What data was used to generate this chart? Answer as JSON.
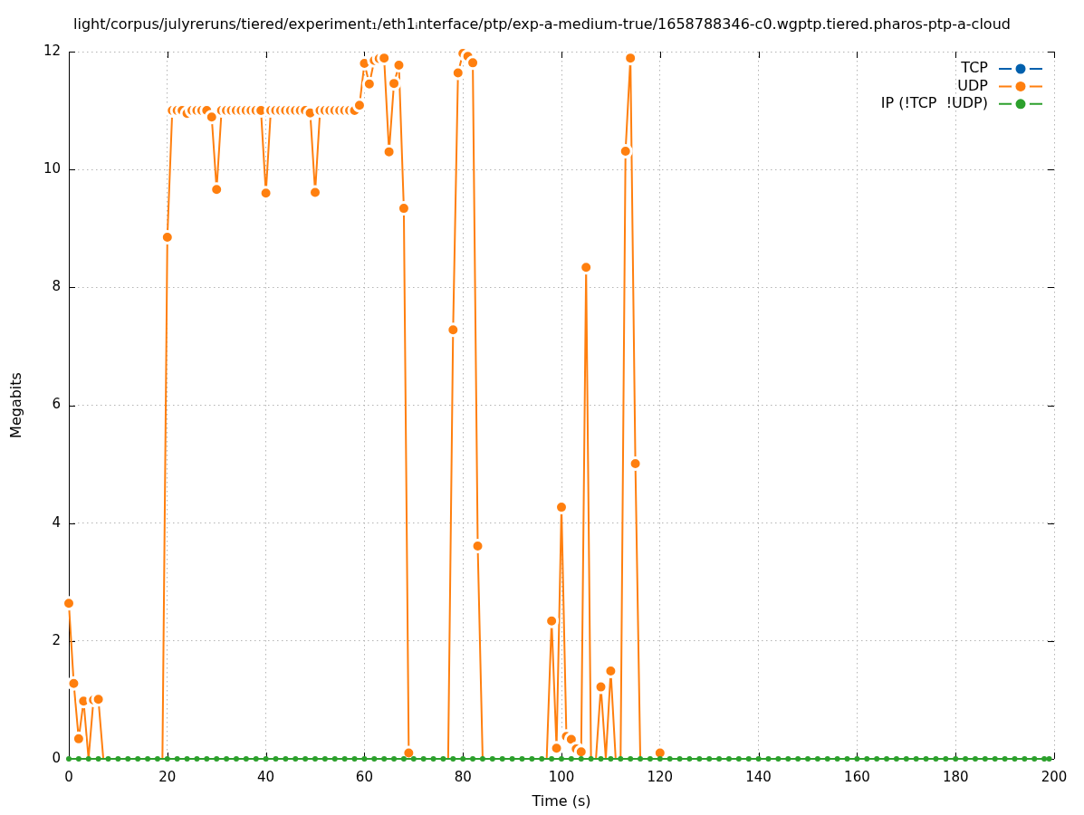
{
  "chart_data": {
    "type": "line",
    "title": "light/corpus/julyreruns/tiered/experiment₁/eth1ᵢnterface/ptp/exp-a-medium-true/1658788346-c0.wgptp.tiered.pharos-ptp-a-cloud",
    "xlabel": "Time (s)",
    "ylabel": "Megabits",
    "x": [
      0,
      2,
      4,
      6,
      8,
      10,
      12,
      14,
      16,
      18,
      20,
      22,
      24,
      26,
      28,
      30,
      32,
      34,
      36,
      38,
      40,
      42,
      44,
      46,
      48,
      50,
      52,
      54,
      56,
      58,
      60,
      62,
      64,
      66,
      68,
      70,
      72,
      74,
      76,
      78,
      80,
      82,
      84,
      86,
      88,
      90,
      92,
      94,
      96,
      98,
      100,
      102,
      104,
      106,
      108,
      110,
      112,
      114,
      116,
      118,
      120,
      122,
      124,
      126,
      128,
      130,
      132,
      134,
      136,
      138,
      140,
      142,
      144,
      146,
      148,
      150,
      152,
      154,
      156,
      158,
      160,
      162,
      164,
      166,
      168,
      170,
      172,
      174,
      176,
      178,
      180,
      182,
      184,
      186,
      188,
      190,
      192,
      194,
      196,
      198,
      199
    ],
    "series": [
      {
        "name": "TCP",
        "color": "#0060ad",
        "values": [
          null,
          null,
          null,
          null,
          null,
          null,
          null,
          null,
          null,
          null,
          null,
          null,
          null,
          null,
          null,
          null,
          null,
          null,
          null,
          null,
          null,
          null,
          null,
          null,
          null,
          null,
          null,
          null,
          null,
          null,
          null,
          null,
          null,
          null,
          null,
          null,
          null,
          null,
          null,
          null,
          null,
          null,
          null,
          null,
          null,
          null,
          null,
          null,
          null,
          null,
          null,
          null,
          null,
          null,
          null,
          null,
          null,
          null,
          null,
          null,
          null,
          null,
          null,
          null,
          null,
          null,
          null,
          null,
          null,
          null,
          null,
          null,
          null,
          null,
          null,
          null,
          null,
          null,
          null,
          null,
          null,
          null,
          null,
          null,
          null,
          null,
          null,
          null,
          null,
          null,
          null,
          null,
          null,
          null,
          null,
          null,
          null,
          null,
          null,
          null,
          null
        ]
      },
      {
        "name": "UDP",
        "color": "#ff7f0e",
        "x": [
          0,
          1,
          2,
          3,
          4,
          5,
          6,
          7,
          8,
          9,
          10,
          11,
          12,
          13,
          14,
          15,
          16,
          17,
          18,
          19,
          20,
          21,
          22,
          23,
          24,
          25,
          26,
          27,
          28,
          29,
          30,
          31,
          32,
          33,
          34,
          35,
          36,
          37,
          38,
          39,
          40,
          41,
          42,
          43,
          44,
          45,
          46,
          47,
          48,
          49,
          50,
          51,
          52,
          53,
          54,
          55,
          56,
          57,
          58,
          59,
          60,
          61,
          62,
          63,
          64,
          65,
          66,
          67,
          68,
          69,
          70,
          71,
          72,
          73,
          74,
          75,
          76,
          77,
          78,
          79,
          80,
          81,
          82,
          83,
          84,
          85,
          86,
          87,
          88,
          89,
          90,
          91,
          92,
          93,
          94,
          95,
          96,
          97,
          98,
          99,
          100,
          101,
          102,
          103,
          104,
          105,
          106,
          107,
          108,
          109,
          110,
          111,
          112,
          113,
          114,
          115,
          116,
          117,
          118,
          119,
          120
        ],
        "values": [
          2.64,
          1.28,
          0.34,
          0.98,
          0,
          1.0,
          1.01,
          0,
          null,
          null,
          null,
          null,
          null,
          null,
          null,
          null,
          null,
          null,
          null,
          0,
          8.85,
          11.0,
          11.0,
          11.0,
          10.95,
          11.0,
          11.0,
          11.0,
          11.0,
          10.89,
          9.66,
          11.0,
          11.0,
          11.0,
          11.0,
          11.0,
          11.0,
          11.0,
          11.0,
          11.0,
          9.6,
          11.0,
          11.0,
          11.0,
          11.0,
          11.0,
          11.0,
          11.0,
          11.0,
          10.96,
          9.61,
          11.0,
          11.0,
          11.0,
          11.0,
          11.0,
          11.0,
          11.0,
          11.0,
          11.09,
          11.8,
          11.45,
          11.85,
          11.88,
          11.89,
          10.3,
          11.46,
          11.77,
          9.34,
          0.1,
          null,
          null,
          null,
          null,
          null,
          null,
          null,
          0,
          7.28,
          11.64,
          11.97,
          11.92,
          11.81,
          3.61,
          0,
          null,
          null,
          null,
          null,
          null,
          null,
          null,
          null,
          null,
          null,
          null,
          null,
          0,
          2.34,
          0.18,
          4.27,
          0.38,
          0.33,
          0.17,
          0.12,
          8.34,
          0,
          0,
          1.22,
          0,
          1.49,
          0,
          0,
          10.31,
          11.89,
          5.01,
          0,
          null,
          null,
          null,
          0.1
        ]
      },
      {
        "name": "IP (!TCP  !UDP)",
        "color": "#2ca02c",
        "values": [
          0,
          0,
          0,
          0,
          0,
          0,
          0,
          0,
          0,
          0,
          0,
          0,
          0,
          0,
          0,
          0,
          0,
          0,
          0,
          0,
          0,
          0,
          0,
          0,
          0,
          0,
          0,
          0,
          0,
          0,
          0,
          0,
          0,
          0,
          0,
          0,
          0,
          0,
          0,
          0,
          0,
          0,
          0,
          0,
          0,
          0,
          0,
          0,
          0,
          0,
          0,
          0,
          0,
          0,
          0,
          0,
          0,
          0,
          0,
          0,
          0,
          0,
          0,
          0,
          0,
          0,
          0,
          0,
          0,
          0,
          0,
          0,
          0,
          0,
          0,
          0,
          0,
          0,
          0,
          0,
          0,
          0,
          0,
          0,
          0,
          0,
          0,
          0,
          0,
          0,
          0,
          0,
          0,
          0,
          0,
          0,
          0,
          0,
          0,
          0,
          0
        ]
      }
    ],
    "xlim": [
      0,
      200
    ],
    "xticks": [
      0,
      20,
      40,
      60,
      80,
      100,
      120,
      140,
      160,
      180,
      200
    ],
    "ylim": [
      0,
      12
    ],
    "yticks": [
      0,
      2,
      4,
      6,
      8,
      10,
      12
    ],
    "grid": true,
    "legend": "top right",
    "marker": "circle",
    "line_style": "solid"
  }
}
